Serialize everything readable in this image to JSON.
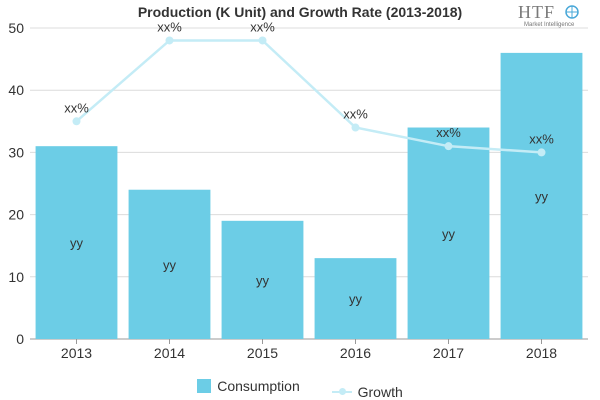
{
  "chart_data": {
    "type": "bar",
    "title": "Production (K Unit) and Growth Rate (2013-2018)",
    "categories": [
      "2013",
      "2014",
      "2015",
      "2016",
      "2017",
      "2018"
    ],
    "ylim": [
      0,
      50
    ],
    "yticks": [
      0,
      10,
      20,
      30,
      40,
      50
    ],
    "xlabel": "",
    "ylabel": "",
    "series": [
      {
        "name": "Consumption",
        "type": "bar",
        "values": [
          31,
          24,
          19,
          13,
          34,
          46
        ],
        "labels": [
          "yy",
          "yy",
          "yy",
          "yy",
          "yy",
          "yy"
        ],
        "color": "#6ccde6"
      },
      {
        "name": "Growth",
        "type": "line",
        "values": [
          35,
          48,
          48,
          34,
          31,
          30
        ],
        "labels": [
          "xx%",
          "xx%",
          "xx%",
          "xx%",
          "xx%",
          "xx%"
        ],
        "color": "#c4ecf6"
      }
    ],
    "legend_position": "bottom"
  },
  "logo": {
    "main": "HTF",
    "sub": "Market Intelligence"
  }
}
